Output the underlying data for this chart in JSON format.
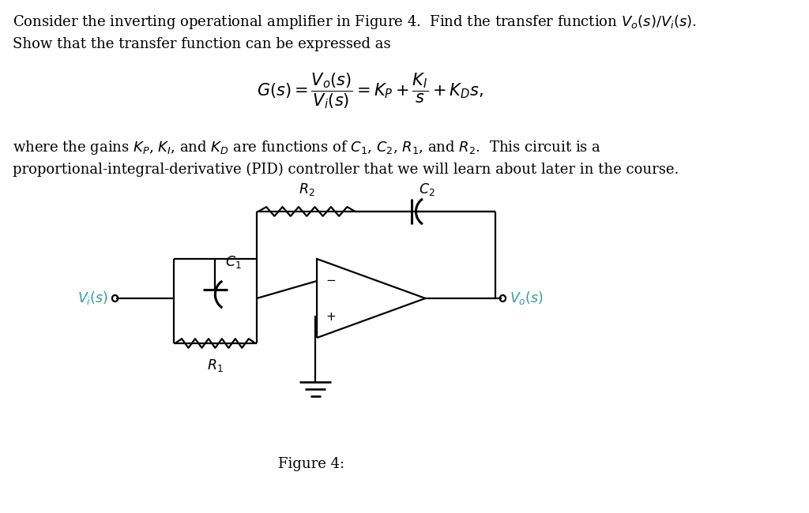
{
  "bg_color": "#ffffff",
  "text_color": "#000000",
  "teal_color": "#2aa198",
  "fig_width": 10.24,
  "fig_height": 6.5,
  "font_size_body": 13.0,
  "font_size_eq": 15,
  "font_size_circuit": 12.5,
  "font_size_label_inside": 11,
  "lw": 1.6,
  "plate_lw": 2.2,
  "paragraph1": "Consider the inverting operational amplifier in Figure 4.  Find the transfer function $V_o(s)/V_i(s)$.",
  "paragraph2": "Show that the transfer function can be expressed as",
  "paragraph3_a": "where the gains $K_P$, $K_I$, and $K_D$ are functions of $C_1$, $C_2$, $R_1$, and $R_2$.  This circuit is a",
  "paragraph3_b": "proportional-integral-derivative (PID) controller that we will learn about later in the course.",
  "figure_caption": "Figure 4:",
  "equation": "$G(s) = \\dfrac{V_o(s)}{V_i(s)} = K_P + \\dfrac{K_I}{s} + K_D s,$"
}
